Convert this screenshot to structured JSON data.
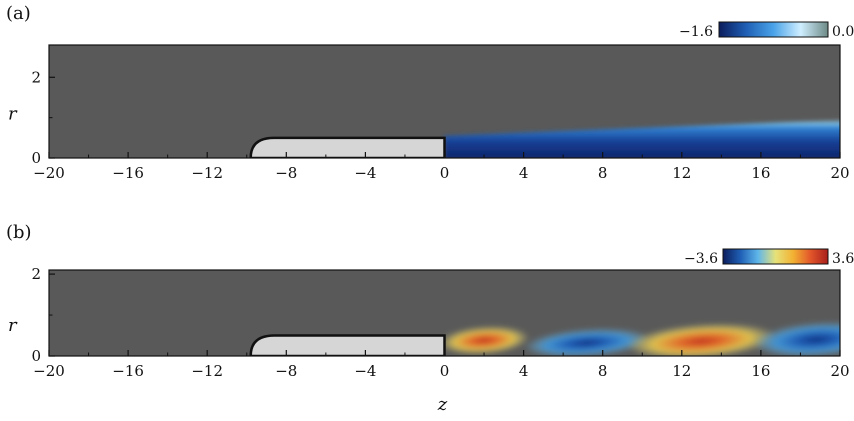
{
  "chart_data": [
    {
      "type": "heatmap",
      "panel_label": "(a)",
      "xlabel": "",
      "ylabel": "r",
      "xlim": [
        -20,
        20
      ],
      "ylim": [
        0,
        2.8
      ],
      "xticks": [
        -20,
        -16,
        -12,
        -8,
        -4,
        0,
        4,
        8,
        12,
        16,
        20
      ],
      "xtick_labels": [
        "−20",
        "−16",
        "−12",
        "−8",
        "−4",
        "0",
        "4",
        "8",
        "12",
        "16",
        "20"
      ],
      "yticks": [
        0,
        2
      ],
      "ytick_labels": [
        "0",
        "2"
      ],
      "colorbar": {
        "min": -1.6,
        "max": 0.03,
        "min_label": "−1.6",
        "max_label": "0.03",
        "colors": [
          "#0b1d5c",
          "#1f5fb5",
          "#4aa3e8",
          "#cfeeff",
          "#6d8a86"
        ]
      },
      "background_value": 0,
      "body": {
        "z_start": -9.8,
        "z_end": 0,
        "radius": 0.5,
        "color": "#d6d6d6"
      },
      "field": "wake",
      "wake": {
        "z_start": 0,
        "z_end": 20,
        "radius_start": 0.55,
        "radius_end": 0.95,
        "min_value": -1.6
      }
    },
    {
      "type": "heatmap",
      "panel_label": "(b)",
      "xlabel": "z",
      "ylabel": "r",
      "xlim": [
        -20,
        20
      ],
      "ylim": [
        0,
        2.8
      ],
      "xticks": [
        -20,
        -16,
        -12,
        -8,
        -4,
        0,
        4,
        8,
        12,
        16,
        20
      ],
      "xtick_labels": [
        "−20",
        "−16",
        "−12",
        "−8",
        "−4",
        "0",
        "4",
        "8",
        "12",
        "16",
        "20"
      ],
      "yticks": [
        0,
        2
      ],
      "ytick_labels": [
        "0",
        "2"
      ],
      "colorbar": {
        "min": -3.6,
        "max": 3.6,
        "min_label": "−3.6",
        "max_label": "3.6",
        "colors": [
          "#0b1d5c",
          "#1f5fb5",
          "#5fb6ea",
          "#e6e27a",
          "#f2b233",
          "#e2562a",
          "#a81f1c"
        ]
      },
      "background_value": 0,
      "body": {
        "z_start": -9.8,
        "z_end": 0,
        "radius": 0.5,
        "color": "#d6d6d6"
      },
      "field": "wavepacket",
      "lobes": [
        {
          "z_center": 2.0,
          "r_center": 0.38,
          "half_length": 2.3,
          "half_height": 0.34,
          "value": 3.6
        },
        {
          "z_center": 7.2,
          "r_center": 0.32,
          "half_length": 3.2,
          "half_height": 0.34,
          "value": -3.6
        },
        {
          "z_center": 13.0,
          "r_center": 0.36,
          "half_length": 3.8,
          "half_height": 0.42,
          "value": 3.6
        },
        {
          "z_center": 18.8,
          "r_center": 0.4,
          "half_length": 3.2,
          "half_height": 0.42,
          "value": -3.6
        }
      ]
    }
  ]
}
